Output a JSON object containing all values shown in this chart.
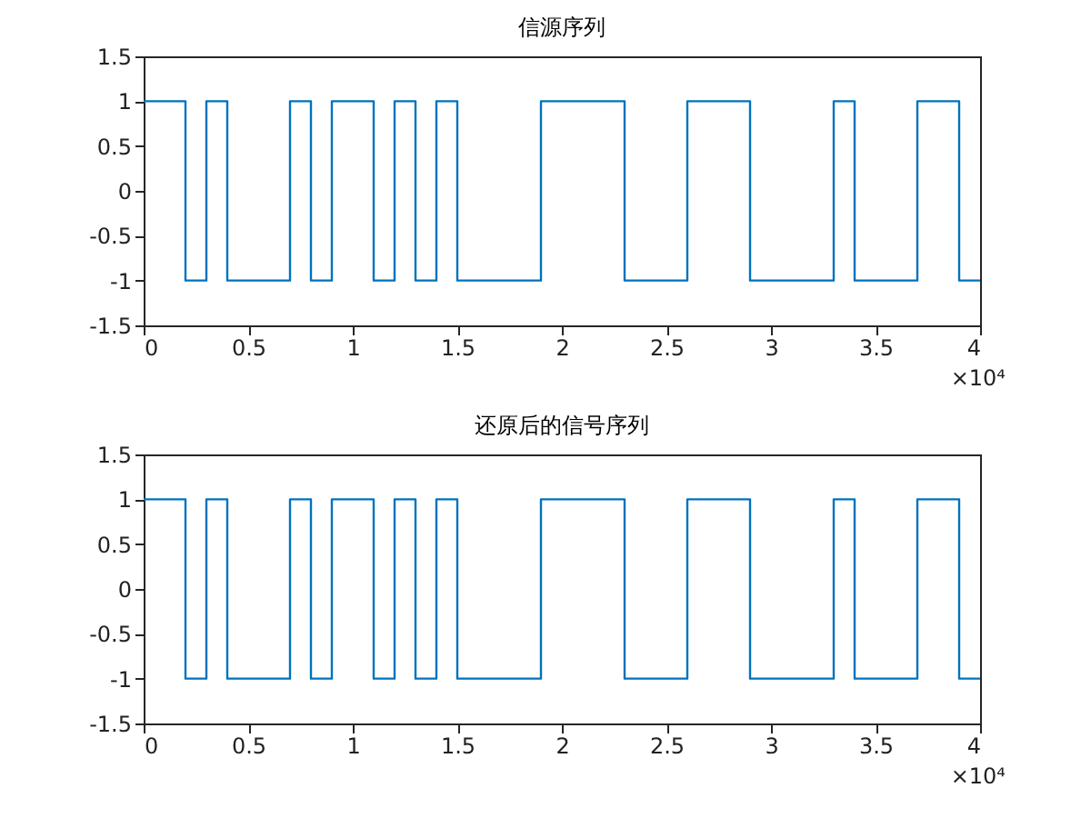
{
  "chart_data": [
    {
      "type": "step",
      "title": "信源序列",
      "x": [
        0,
        0.2,
        0.3,
        0.4,
        0.7,
        0.8,
        0.9,
        1.1,
        1.2,
        1.3,
        1.4,
        1.5,
        1.9,
        2.3,
        2.6,
        2.9,
        3.3,
        3.4,
        3.7,
        3.9,
        4
      ],
      "series": [
        {
          "color": "#0072bd",
          "values": [
            1,
            -1,
            1,
            -1,
            1,
            -1,
            1,
            -1,
            1,
            -1,
            1,
            -1,
            1,
            -1,
            1,
            -1,
            1,
            -1,
            1,
            -1,
            -1
          ]
        }
      ],
      "xlim": [
        0,
        4
      ],
      "xticks": [
        0,
        0.5,
        1,
        1.5,
        2,
        2.5,
        3,
        3.5,
        4
      ],
      "ylim": [
        -1.5,
        1.5
      ],
      "yticks": [
        -1.5,
        -1,
        -0.5,
        0,
        0.5,
        1,
        1.5
      ],
      "annotations": [
        "×10⁴"
      ]
    },
    {
      "type": "step",
      "title": "还原后的信号序列",
      "x": [
        0,
        0.2,
        0.3,
        0.4,
        0.7,
        0.8,
        0.9,
        1.1,
        1.2,
        1.3,
        1.4,
        1.5,
        1.9,
        2.3,
        2.6,
        2.9,
        3.3,
        3.4,
        3.7,
        3.9,
        4
      ],
      "series": [
        {
          "color": "#0072bd",
          "values": [
            1,
            -1,
            1,
            -1,
            1,
            -1,
            1,
            -1,
            1,
            -1,
            1,
            -1,
            1,
            -1,
            1,
            -1,
            1,
            -1,
            1,
            -1,
            -1
          ]
        }
      ],
      "xlim": [
        0,
        4
      ],
      "xticks": [
        0,
        0.5,
        1,
        1.5,
        2,
        2.5,
        3,
        3.5,
        4
      ],
      "ylim": [
        -1.5,
        1.5
      ],
      "yticks": [
        -1.5,
        -1,
        -0.5,
        0,
        0.5,
        1,
        1.5
      ],
      "annotations": [
        "×10⁴"
      ]
    }
  ]
}
